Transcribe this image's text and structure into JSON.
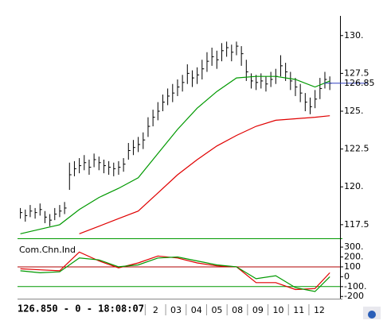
{
  "status": "126.850 - 0 - 18:08:07",
  "chart_data": [
    {
      "type": "hlc",
      "xlim": [
        -6.24,
        9.52
      ],
      "xticks": [
        {
          "value": 0,
          "label": "2"
        },
        {
          "value": 1,
          "label": "03"
        },
        {
          "value": 2,
          "label": "04"
        },
        {
          "value": 3,
          "label": "05"
        },
        {
          "value": 4,
          "label": "08"
        },
        {
          "value": 5,
          "label": "09"
        },
        {
          "value": 6,
          "label": "10"
        },
        {
          "value": 7,
          "label": "11"
        },
        {
          "value": 8,
          "label": "12"
        }
      ],
      "ylim": [
        116.6,
        131.3
      ],
      "yticks": [
        {
          "value": 130,
          "label": "130."
        },
        127.5,
        {
          "value": 125,
          "label": "125."
        },
        122.5,
        {
          "value": 120,
          "label": "120."
        },
        117.5
      ],
      "last": 126.85,
      "last_color": "#3040c0",
      "color": "#000000",
      "x": [
        -6.1,
        -5.86,
        -5.62,
        -5.38,
        -5.14,
        -4.9,
        -4.66,
        -4.42,
        -4.18,
        -3.94,
        -3.7,
        -3.46,
        -3.22,
        -2.98,
        -2.74,
        -2.5,
        -2.26,
        -2.02,
        -1.78,
        -1.54,
        -1.3,
        -1.06,
        -0.82,
        -0.58,
        -0.34,
        -0.1,
        0.14,
        0.38,
        0.62,
        0.86,
        1.1,
        1.34,
        1.58,
        1.82,
        2.06,
        2.3,
        2.54,
        2.78,
        3.02,
        3.26,
        3.5,
        3.74,
        3.98,
        4.22,
        4.46,
        4.7,
        4.94,
        5.18,
        5.42,
        5.66,
        5.9,
        6.14,
        6.38,
        6.62,
        6.86,
        7.1,
        7.34,
        7.58,
        7.82,
        8.06,
        8.3,
        8.54,
        8.78,
        9.02
      ],
      "high": [
        118.6,
        118.5,
        118.8,
        118.6,
        118.9,
        118.4,
        118.2,
        118.6,
        118.8,
        119.0,
        121.6,
        121.7,
        121.9,
        122.1,
        121.8,
        122.2,
        122.0,
        121.8,
        121.7,
        121.6,
        121.7,
        121.9,
        122.9,
        123.1,
        123.3,
        123.6,
        124.6,
        125.1,
        125.6,
        126.1,
        126.5,
        126.8,
        127.1,
        127.4,
        128.1,
        127.7,
        127.9,
        128.4,
        128.9,
        129.2,
        129.0,
        129.5,
        129.6,
        129.4,
        129.6,
        129.3,
        128.4,
        127.5,
        127.4,
        127.5,
        127.3,
        127.6,
        127.8,
        128.7,
        128.2,
        127.6,
        127.2,
        126.8,
        126.2,
        125.9,
        126.4,
        127.2,
        127.6,
        127.3
      ],
      "low": [
        117.9,
        117.7,
        118.0,
        117.9,
        118.1,
        117.6,
        117.4,
        117.8,
        118.0,
        118.2,
        119.8,
        120.7,
        120.9,
        121.1,
        120.8,
        121.3,
        121.1,
        120.9,
        120.8,
        120.7,
        120.8,
        121.0,
        121.8,
        122.1,
        122.3,
        122.5,
        123.3,
        124.0,
        124.4,
        125.0,
        125.4,
        125.6,
        126.0,
        126.3,
        126.8,
        126.6,
        126.8,
        127.1,
        127.6,
        128.0,
        127.8,
        128.3,
        128.6,
        128.3,
        128.7,
        128.0,
        127.0,
        126.5,
        126.4,
        126.5,
        126.3,
        126.6,
        126.8,
        127.3,
        127.0,
        126.4,
        126.0,
        125.6,
        125.0,
        124.8,
        125.2,
        125.8,
        126.5,
        126.4
      ],
      "values": [
        118.3,
        118.1,
        118.4,
        118.3,
        118.5,
        118.0,
        117.8,
        118.2,
        118.4,
        118.6,
        120.8,
        121.2,
        121.4,
        121.6,
        121.3,
        121.8,
        121.6,
        121.4,
        121.3,
        121.2,
        121.3,
        121.5,
        122.4,
        122.6,
        122.8,
        123.1,
        124.0,
        124.6,
        125.0,
        125.6,
        126.0,
        126.2,
        126.6,
        126.9,
        127.5,
        127.2,
        127.4,
        127.8,
        128.3,
        128.6,
        128.4,
        129.0,
        129.2,
        128.9,
        129.3,
        128.8,
        127.6,
        127.0,
        126.9,
        127.0,
        126.8,
        127.1,
        127.3,
        128.0,
        127.6,
        127.0,
        126.6,
        126.2,
        125.6,
        125.3,
        125.8,
        126.5,
        127.1,
        126.85
      ],
      "series": [
        {
          "color": "#009900",
          "x": [
            -6.1,
            -5.14,
            -4.18,
            -3.22,
            -2.26,
            -1.3,
            -0.34,
            0.62,
            1.58,
            2.54,
            3.5,
            4.46,
            5.42,
            6.38,
            7.34,
            8.3,
            9.02
          ],
          "values": [
            116.9,
            117.2,
            117.5,
            118.5,
            119.3,
            119.9,
            120.6,
            122.2,
            123.8,
            125.2,
            126.3,
            127.2,
            127.3,
            127.3,
            127.1,
            126.6,
            127.0
          ]
        },
        {
          "color": "#e00000",
          "x": [
            -6.1,
            -5.14,
            -4.18,
            -3.22,
            -2.26,
            -1.3,
            -0.34,
            0.62,
            1.58,
            2.54,
            3.5,
            4.46,
            5.42,
            6.38,
            7.34,
            8.3,
            9.02
          ],
          "values": [
            null,
            null,
            null,
            116.9,
            117.4,
            117.9,
            118.4,
            119.6,
            120.8,
            121.8,
            122.7,
            123.4,
            124.0,
            124.4,
            124.5,
            124.6,
            124.7
          ]
        }
      ]
    },
    {
      "type": "line",
      "title": "Com.Chn.Ind",
      "xlim": [
        -6.24,
        9.52
      ],
      "ylim": [
        -190,
        365
      ],
      "yticks": [
        {
          "value": 300,
          "label": "300."
        },
        {
          "value": 200,
          "label": "200."
        },
        100,
        0,
        {
          "value": -100,
          "label": "-100."
        },
        -200
      ],
      "hlines": [
        {
          "value": 100,
          "color": "#b00000"
        },
        {
          "value": -100,
          "color": "#009900"
        }
      ],
      "series": [
        {
          "color": "#e00000",
          "x": [
            -6.1,
            -5.14,
            -4.18,
            -3.22,
            -2.26,
            -1.3,
            -0.34,
            0.62,
            1.58,
            2.54,
            3.5,
            4.46,
            5.42,
            6.38,
            7.34,
            8.3,
            9.02
          ],
          "values": [
            80,
            70,
            60,
            250,
            160,
            90,
            140,
            210,
            190,
            140,
            110,
            100,
            -60,
            -60,
            -130,
            -120,
            40
          ]
        },
        {
          "color": "#009900",
          "x": [
            -6.1,
            -5.14,
            -4.18,
            -3.22,
            -2.26,
            -1.3,
            -0.34,
            0.62,
            1.58,
            2.54,
            3.5,
            4.46,
            5.42,
            6.38,
            7.34,
            8.3,
            9.02
          ],
          "values": [
            60,
            40,
            50,
            190,
            170,
            100,
            120,
            190,
            200,
            160,
            120,
            100,
            -20,
            10,
            -110,
            -150,
            0
          ]
        }
      ]
    }
  ]
}
